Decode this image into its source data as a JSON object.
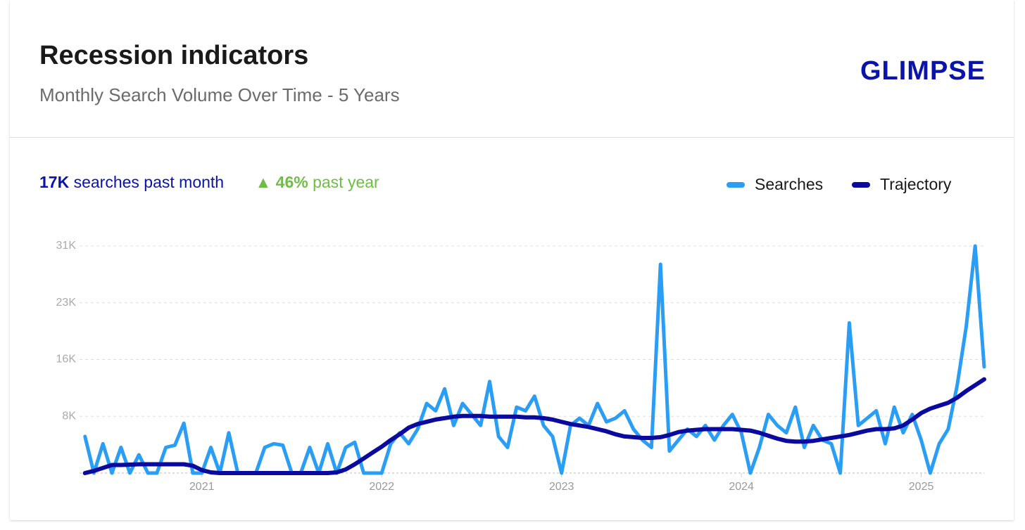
{
  "header": {
    "title": "Recession indicators",
    "subtitle": "Monthly Search Volume Over Time - 5 Years",
    "logo": "GLIMPSE"
  },
  "stats": {
    "volume": "17K",
    "volume_text": "searches past month",
    "growth": "46%",
    "growth_text": "past year"
  },
  "chart_data": {
    "type": "line",
    "x": [
      2020.35,
      2020.4,
      2020.45,
      2020.5,
      2020.55,
      2020.6,
      2020.65,
      2020.7,
      2020.75,
      2020.8,
      2020.85,
      2020.9,
      2020.95,
      2021.0,
      2021.05,
      2021.1,
      2021.15,
      2021.2,
      2021.25,
      2021.3,
      2021.35,
      2021.4,
      2021.45,
      2021.5,
      2021.55,
      2021.6,
      2021.65,
      2021.7,
      2021.75,
      2021.8,
      2021.85,
      2021.9,
      2021.95,
      2022.0,
      2022.05,
      2022.1,
      2022.15,
      2022.2,
      2022.25,
      2022.3,
      2022.35,
      2022.4,
      2022.45,
      2022.5,
      2022.55,
      2022.6,
      2022.65,
      2022.7,
      2022.75,
      2022.8,
      2022.85,
      2022.9,
      2022.95,
      2023.0,
      2023.05,
      2023.1,
      2023.15,
      2023.2,
      2023.25,
      2023.3,
      2023.35,
      2023.4,
      2023.45,
      2023.5,
      2023.55,
      2023.6,
      2023.65,
      2023.7,
      2023.75,
      2023.8,
      2023.85,
      2023.9,
      2023.95,
      2024.0,
      2024.05,
      2024.1,
      2024.15,
      2024.2,
      2024.25,
      2024.3,
      2024.35,
      2024.4,
      2024.45,
      2024.5,
      2024.55,
      2024.6,
      2024.65,
      2024.7,
      2024.75,
      2024.8,
      2024.85,
      2024.9,
      2024.95,
      2025.0,
      2025.05,
      2025.1,
      2025.15,
      2025.2,
      2025.25,
      2025.3,
      2025.35
    ],
    "series": [
      {
        "name": "Searches",
        "color": "#2a9df4",
        "values": [
          5000,
          0,
          4000,
          0,
          3500,
          0,
          2500,
          0,
          0,
          3500,
          3800,
          6800,
          0,
          0,
          3500,
          0,
          5500,
          0,
          0,
          0,
          3500,
          4000,
          3800,
          0,
          0,
          3500,
          0,
          4000,
          0,
          3500,
          4200,
          0,
          0,
          0,
          4000,
          5500,
          4000,
          6000,
          9500,
          8500,
          11500,
          6500,
          9500,
          8000,
          6500,
          12500,
          5000,
          3500,
          9000,
          8500,
          10500,
          6500,
          5000,
          0,
          6500,
          7500,
          6500,
          9500,
          7000,
          7500,
          8500,
          6000,
          4500,
          3500,
          28500,
          3000,
          4500,
          6000,
          5000,
          6500,
          4500,
          6500,
          8000,
          5500,
          0,
          3500,
          8000,
          6500,
          5500,
          9000,
          3500,
          6500,
          4500,
          4000,
          0,
          20500,
          6500,
          7500,
          8500,
          4000,
          9000,
          5500,
          8000,
          4500,
          0,
          4000,
          6000,
          12000,
          20000,
          31000,
          14500
        ]
      },
      {
        "name": "Trajectory",
        "color": "#0a0a9e",
        "values": [
          0,
          300,
          700,
          1100,
          1100,
          1150,
          1200,
          1200,
          1200,
          1200,
          1200,
          1200,
          1000,
          400,
          100,
          0,
          0,
          0,
          0,
          0,
          0,
          0,
          0,
          0,
          0,
          0,
          0,
          0,
          100,
          500,
          1200,
          2000,
          2800,
          3600,
          4500,
          5300,
          6200,
          6700,
          7000,
          7300,
          7500,
          7700,
          7800,
          7800,
          7800,
          7700,
          7700,
          7700,
          7700,
          7600,
          7600,
          7500,
          7300,
          7000,
          6700,
          6500,
          6300,
          6000,
          5700,
          5300,
          5000,
          4900,
          4800,
          4800,
          4900,
          5200,
          5600,
          5800,
          5900,
          6000,
          6000,
          6000,
          6000,
          5900,
          5800,
          5500,
          5100,
          4700,
          4400,
          4300,
          4300,
          4400,
          4600,
          4800,
          5000,
          5200,
          5500,
          5800,
          6000,
          6000,
          6100,
          6500,
          7300,
          8200,
          8800,
          9200,
          9600,
          10300,
          11200,
          12000,
          12800
        ]
      }
    ],
    "xlim": [
      2020.32,
      2025.35
    ],
    "xticks": [
      2021,
      2022,
      2023,
      2024,
      2025
    ],
    "ylim": [
      0,
      31000
    ],
    "yticks": [
      {
        "value": 7750,
        "label": "8K"
      },
      {
        "value": 15500,
        "label": "16K"
      },
      {
        "value": 23250,
        "label": "23K"
      },
      {
        "value": 31000,
        "label": "31K"
      }
    ],
    "grid": true,
    "legend": "top-right"
  }
}
